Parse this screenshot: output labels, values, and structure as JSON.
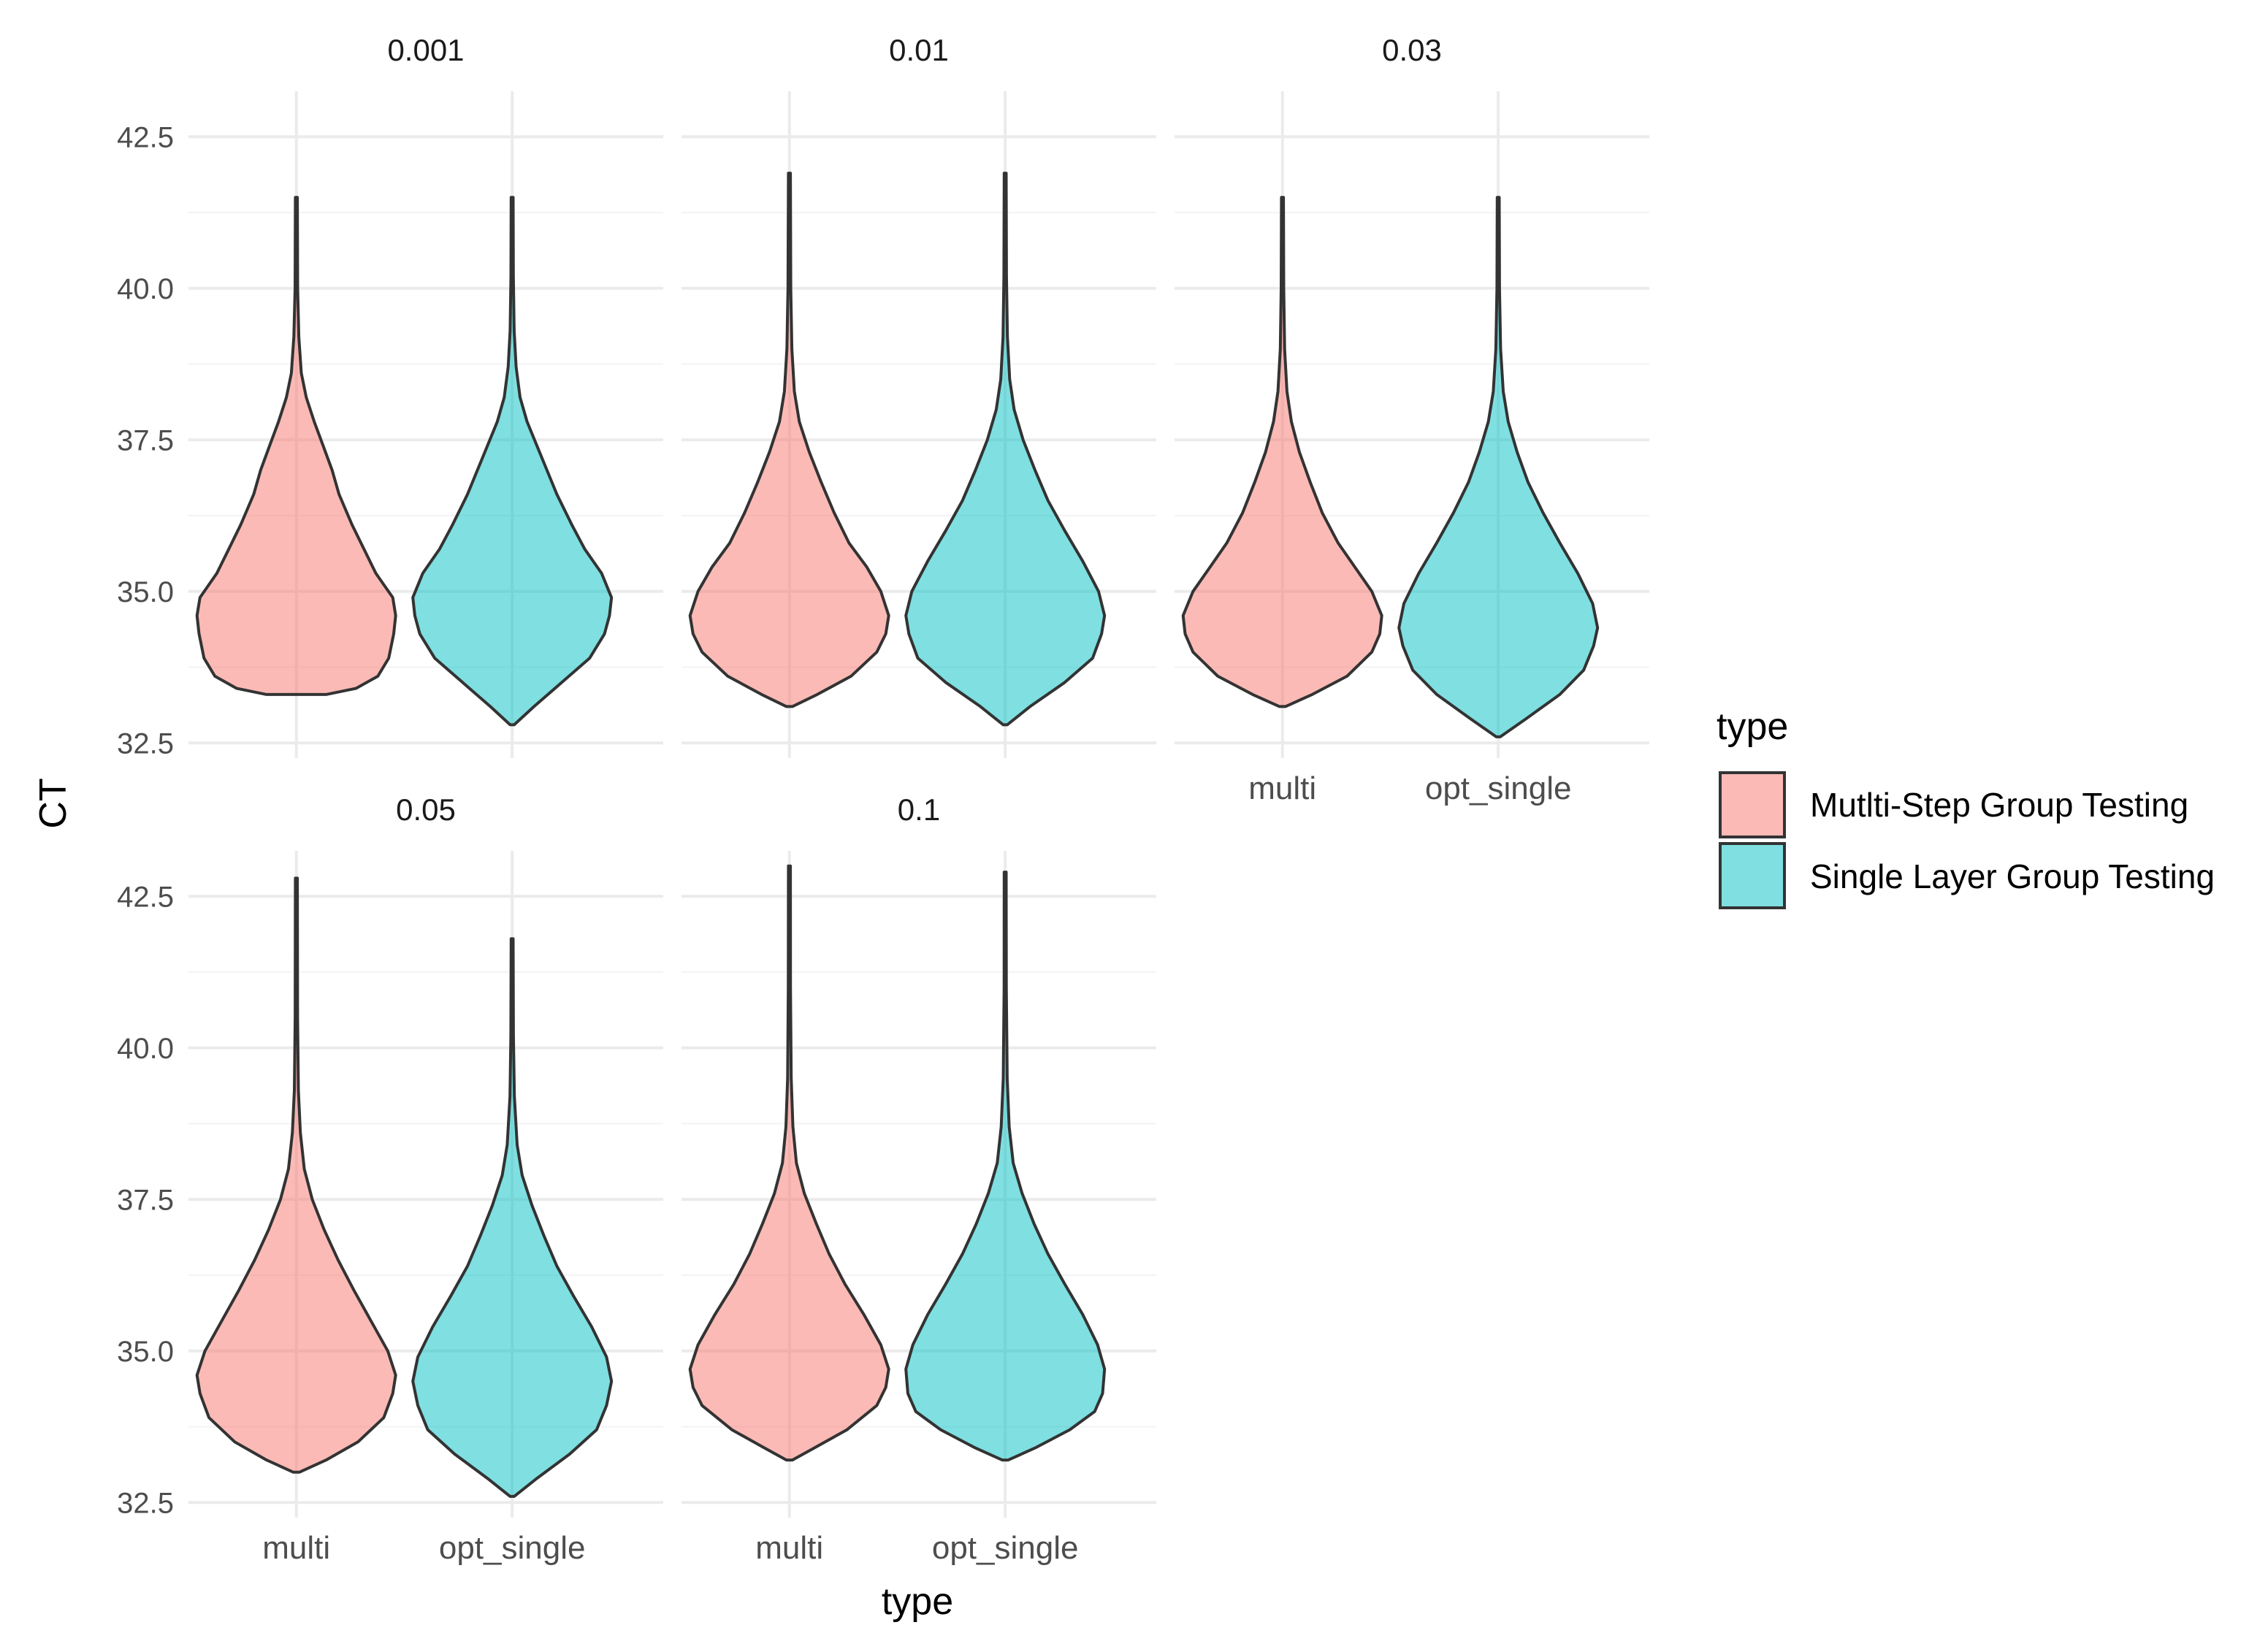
{
  "chart_data": {
    "type": "violin",
    "xlabel": "type",
    "ylabel": "CT",
    "ylim": [
      32.25,
      43.25
    ],
    "yticks": [
      32.5,
      35.0,
      37.5,
      40.0,
      42.5
    ],
    "ytick_labels": [
      "32.5",
      "35.0",
      "37.5",
      "40.0",
      "42.5"
    ],
    "categories": [
      "multi",
      "opt_single"
    ],
    "legend": {
      "title": "type",
      "position": "right",
      "entries": [
        {
          "key": "multi",
          "label": "Mutlti-Step Group Testing",
          "color": "#F8766D"
        },
        {
          "key": "opt_single",
          "label": "Single Layer Group Testing",
          "color": "#00BFC4"
        }
      ]
    },
    "panels": [
      {
        "label": "0.001",
        "violins": [
          {
            "category": "multi",
            "min": 33.3,
            "max": 41.5,
            "profile": [
              [
                33.3,
                0.3
              ],
              [
                33.4,
                0.6
              ],
              [
                33.6,
                0.82
              ],
              [
                33.9,
                0.93
              ],
              [
                34.3,
                0.98
              ],
              [
                34.6,
                1.0
              ],
              [
                34.9,
                0.97
              ],
              [
                35.3,
                0.8
              ],
              [
                35.7,
                0.68
              ],
              [
                36.1,
                0.56
              ],
              [
                36.6,
                0.43
              ],
              [
                37.0,
                0.36
              ],
              [
                37.4,
                0.27
              ],
              [
                37.8,
                0.18
              ],
              [
                38.2,
                0.1
              ],
              [
                38.6,
                0.05
              ],
              [
                39.2,
                0.025
              ],
              [
                40.0,
                0.013
              ],
              [
                41.5,
                0.01
              ]
            ]
          },
          {
            "category": "opt_single",
            "min": 32.8,
            "max": 41.5,
            "profile": [
              [
                32.8,
                0.02
              ],
              [
                33.1,
                0.22
              ],
              [
                33.5,
                0.5
              ],
              [
                33.9,
                0.78
              ],
              [
                34.3,
                0.93
              ],
              [
                34.6,
                0.98
              ],
              [
                34.9,
                1.0
              ],
              [
                35.3,
                0.9
              ],
              [
                35.7,
                0.73
              ],
              [
                36.1,
                0.6
              ],
              [
                36.6,
                0.45
              ],
              [
                37.0,
                0.35
              ],
              [
                37.4,
                0.25
              ],
              [
                37.8,
                0.15
              ],
              [
                38.2,
                0.08
              ],
              [
                38.7,
                0.04
              ],
              [
                39.3,
                0.02
              ],
              [
                40.2,
                0.012
              ],
              [
                41.5,
                0.01
              ]
            ]
          }
        ]
      },
      {
        "label": "0.01",
        "violins": [
          {
            "category": "multi",
            "min": 33.1,
            "max": 41.9,
            "profile": [
              [
                33.1,
                0.03
              ],
              [
                33.3,
                0.28
              ],
              [
                33.6,
                0.62
              ],
              [
                34.0,
                0.88
              ],
              [
                34.3,
                0.97
              ],
              [
                34.6,
                1.0
              ],
              [
                35.0,
                0.92
              ],
              [
                35.4,
                0.78
              ],
              [
                35.8,
                0.6
              ],
              [
                36.3,
                0.45
              ],
              [
                36.8,
                0.32
              ],
              [
                37.3,
                0.2
              ],
              [
                37.8,
                0.1
              ],
              [
                38.3,
                0.05
              ],
              [
                39.0,
                0.025
              ],
              [
                40.0,
                0.014
              ],
              [
                41.9,
                0.01
              ]
            ]
          },
          {
            "category": "opt_single",
            "min": 32.8,
            "max": 41.9,
            "profile": [
              [
                32.8,
                0.02
              ],
              [
                33.1,
                0.25
              ],
              [
                33.5,
                0.6
              ],
              [
                33.9,
                0.88
              ],
              [
                34.3,
                0.97
              ],
              [
                34.6,
                1.0
              ],
              [
                35.0,
                0.94
              ],
              [
                35.5,
                0.78
              ],
              [
                36.0,
                0.6
              ],
              [
                36.5,
                0.43
              ],
              [
                37.0,
                0.3
              ],
              [
                37.5,
                0.18
              ],
              [
                38.0,
                0.09
              ],
              [
                38.5,
                0.045
              ],
              [
                39.2,
                0.022
              ],
              [
                40.2,
                0.013
              ],
              [
                41.9,
                0.01
              ]
            ]
          }
        ]
      },
      {
        "label": "0.03",
        "violins": [
          {
            "category": "multi",
            "min": 33.1,
            "max": 41.5,
            "profile": [
              [
                33.1,
                0.03
              ],
              [
                33.3,
                0.3
              ],
              [
                33.6,
                0.65
              ],
              [
                34.0,
                0.9
              ],
              [
                34.3,
                0.98
              ],
              [
                34.6,
                1.0
              ],
              [
                35.0,
                0.9
              ],
              [
                35.4,
                0.73
              ],
              [
                35.8,
                0.56
              ],
              [
                36.3,
                0.4
              ],
              [
                36.8,
                0.28
              ],
              [
                37.3,
                0.17
              ],
              [
                37.8,
                0.09
              ],
              [
                38.3,
                0.045
              ],
              [
                39.0,
                0.022
              ],
              [
                40.0,
                0.013
              ],
              [
                41.5,
                0.01
              ]
            ]
          },
          {
            "category": "opt_single",
            "min": 32.6,
            "max": 41.5,
            "profile": [
              [
                32.6,
                0.02
              ],
              [
                32.9,
                0.28
              ],
              [
                33.3,
                0.62
              ],
              [
                33.7,
                0.86
              ],
              [
                34.1,
                0.96
              ],
              [
                34.4,
                1.0
              ],
              [
                34.8,
                0.95
              ],
              [
                35.3,
                0.8
              ],
              [
                35.8,
                0.62
              ],
              [
                36.3,
                0.45
              ],
              [
                36.8,
                0.3
              ],
              [
                37.3,
                0.19
              ],
              [
                37.8,
                0.1
              ],
              [
                38.3,
                0.05
              ],
              [
                39.0,
                0.024
              ],
              [
                40.0,
                0.013
              ],
              [
                41.5,
                0.01
              ]
            ]
          }
        ]
      },
      {
        "label": "0.05",
        "violins": [
          {
            "category": "multi",
            "min": 33.0,
            "max": 42.8,
            "profile": [
              [
                33.0,
                0.03
              ],
              [
                33.2,
                0.3
              ],
              [
                33.5,
                0.62
              ],
              [
                33.9,
                0.88
              ],
              [
                34.3,
                0.97
              ],
              [
                34.6,
                1.0
              ],
              [
                35.0,
                0.92
              ],
              [
                35.5,
                0.75
              ],
              [
                36.0,
                0.58
              ],
              [
                36.5,
                0.42
              ],
              [
                37.0,
                0.28
              ],
              [
                37.5,
                0.16
              ],
              [
                38.0,
                0.08
              ],
              [
                38.6,
                0.04
              ],
              [
                39.3,
                0.02
              ],
              [
                40.5,
                0.012
              ],
              [
                42.8,
                0.01
              ]
            ]
          },
          {
            "category": "opt_single",
            "min": 32.6,
            "max": 41.8,
            "profile": [
              [
                32.6,
                0.02
              ],
              [
                32.9,
                0.25
              ],
              [
                33.3,
                0.58
              ],
              [
                33.7,
                0.85
              ],
              [
                34.1,
                0.95
              ],
              [
                34.5,
                1.0
              ],
              [
                34.9,
                0.95
              ],
              [
                35.4,
                0.8
              ],
              [
                35.9,
                0.62
              ],
              [
                36.4,
                0.45
              ],
              [
                36.9,
                0.32
              ],
              [
                37.4,
                0.2
              ],
              [
                37.9,
                0.1
              ],
              [
                38.4,
                0.05
              ],
              [
                39.2,
                0.022
              ],
              [
                40.2,
                0.013
              ],
              [
                41.8,
                0.01
              ]
            ]
          }
        ]
      },
      {
        "label": "0.1",
        "violins": [
          {
            "category": "multi",
            "min": 33.2,
            "max": 43.0,
            "profile": [
              [
                33.2,
                0.03
              ],
              [
                33.4,
                0.25
              ],
              [
                33.7,
                0.58
              ],
              [
                34.1,
                0.88
              ],
              [
                34.4,
                0.97
              ],
              [
                34.7,
                1.0
              ],
              [
                35.1,
                0.92
              ],
              [
                35.6,
                0.75
              ],
              [
                36.1,
                0.56
              ],
              [
                36.6,
                0.4
              ],
              [
                37.1,
                0.27
              ],
              [
                37.6,
                0.15
              ],
              [
                38.1,
                0.07
              ],
              [
                38.7,
                0.035
              ],
              [
                39.5,
                0.018
              ],
              [
                41.0,
                0.011
              ],
              [
                43.0,
                0.01
              ]
            ]
          },
          {
            "category": "opt_single",
            "min": 33.2,
            "max": 42.9,
            "profile": [
              [
                33.2,
                0.03
              ],
              [
                33.4,
                0.3
              ],
              [
                33.7,
                0.65
              ],
              [
                34.0,
                0.9
              ],
              [
                34.3,
                0.98
              ],
              [
                34.7,
                1.0
              ],
              [
                35.1,
                0.93
              ],
              [
                35.6,
                0.78
              ],
              [
                36.1,
                0.6
              ],
              [
                36.6,
                0.43
              ],
              [
                37.1,
                0.29
              ],
              [
                37.6,
                0.17
              ],
              [
                38.1,
                0.08
              ],
              [
                38.7,
                0.04
              ],
              [
                39.5,
                0.02
              ],
              [
                41.0,
                0.011
              ],
              [
                42.9,
                0.01
              ]
            ]
          }
        ]
      }
    ]
  }
}
